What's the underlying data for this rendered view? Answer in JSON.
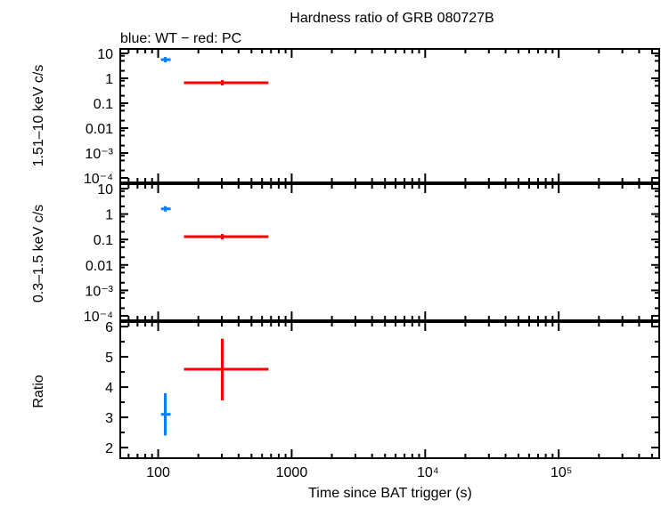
{
  "chart_data": [
    {
      "type": "scatter",
      "title": "Hardness ratio of GRB 080727B",
      "subtitle": "blue: WT − red: PC",
      "ylabel": "1.51–10 keV c/s",
      "yscale": "log",
      "ylim": [
        0.0001,
        10
      ],
      "yticks": [
        "10",
        "1",
        "0.1",
        "0.01",
        "10⁻³",
        "10⁻⁴"
      ],
      "series": [
        {
          "color": "#0080ff",
          "points": [
            {
              "x": 113,
              "xlo": 105,
              "xhi": 124,
              "y": 5.6
            }
          ]
        },
        {
          "color": "#ff0000",
          "points": [
            {
              "x": 302,
              "xlo": 156,
              "xhi": 670,
              "y": 0.66
            }
          ]
        }
      ]
    },
    {
      "type": "scatter",
      "ylabel": "0.3–1.5 keV c/s",
      "yscale": "log",
      "ylim": [
        0.0001,
        10
      ],
      "yticks": [
        "10",
        "1",
        "0.1",
        "0.01",
        "10⁻³",
        "10⁻⁴"
      ],
      "series": [
        {
          "color": "#0080ff",
          "points": [
            {
              "x": 113,
              "xlo": 105,
              "xhi": 124,
              "y": 1.6
            }
          ]
        },
        {
          "color": "#ff0000",
          "points": [
            {
              "x": 302,
              "xlo": 156,
              "xhi": 670,
              "y": 0.13
            }
          ]
        }
      ]
    },
    {
      "type": "scatter",
      "ylabel": "Ratio",
      "yscale": "linear",
      "ylim": [
        1.65,
        6.15
      ],
      "yticks": [
        "6",
        "5",
        "4",
        "3",
        "2"
      ],
      "xlabel": "Time since BAT trigger (s)",
      "xscale": "log",
      "xlim": [
        52,
        566000
      ],
      "xticks": [
        "100",
        "1000",
        "10⁴",
        "10⁵"
      ],
      "series": [
        {
          "color": "#0080ff",
          "points": [
            {
              "x": 113,
              "xlo": 105,
              "xhi": 124,
              "y": 3.1,
              "ylo": 2.4,
              "yhi": 3.8
            }
          ]
        },
        {
          "color": "#ff0000",
          "points": [
            {
              "x": 302,
              "xlo": 156,
              "xhi": 670,
              "y": 4.59,
              "ylo": 3.56,
              "yhi": 5.6
            }
          ]
        }
      ]
    }
  ]
}
